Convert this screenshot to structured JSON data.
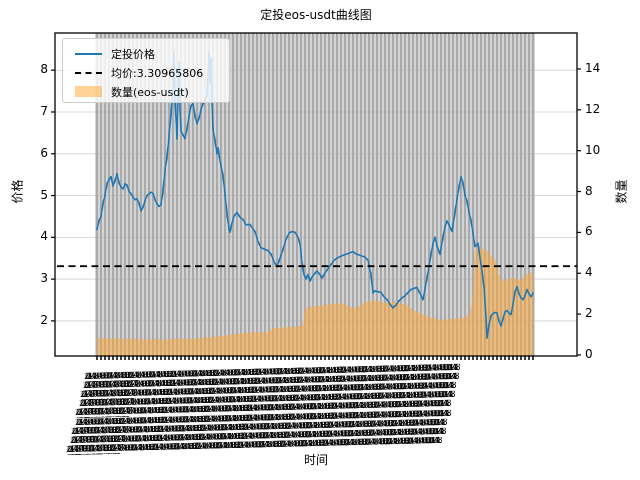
{
  "chart_data": {
    "type": "line",
    "title": "定投eos-usdt曲线图",
    "xlabel": "时间",
    "ylabel_left": "价格",
    "ylabel_right": "数量",
    "x_points": 110,
    "x_tick_labels_legible": false,
    "x_tick_illegible_pattern": "2021-04-18 04:00:00",
    "x_tick_overlap_rows": 9,
    "left_axis": {
      "ticks": [
        2,
        3,
        4,
        5,
        6,
        7,
        8
      ],
      "lim": [
        1.16,
        8.89
      ]
    },
    "right_axis": {
      "ticks": [
        0,
        2,
        4,
        6,
        8,
        10,
        12,
        14
      ],
      "lim": [
        -0.05,
        15.76
      ]
    },
    "grid": {
      "vertical_bars_per_x": true,
      "horizontal_gridlines": true
    },
    "colors": {
      "price_line": "#1f77b4",
      "avg_line": "#000000",
      "qty_fill": "rgba(255,166,47,0.5)",
      "bar_gray": "#a9a9a9",
      "gridline": "#d9d9d9",
      "legend_border": "#cccccc"
    },
    "legend": [
      {
        "label": "定投价格",
        "type": "line"
      },
      {
        "label": "均价:3.30965806",
        "type": "dashed"
      },
      {
        "label": "数量(eos-usdt)",
        "type": "patch"
      }
    ],
    "average_price": 3.30965806,
    "series": [
      {
        "name": "定投价格",
        "axis": "left",
        "kind": "line",
        "points": [
          [
            0,
            4.19
          ],
          [
            0.5,
            4.4
          ],
          [
            1,
            4.5
          ],
          [
            1.5,
            4.82
          ],
          [
            2,
            5.0
          ],
          [
            2.5,
            5.28
          ],
          [
            3,
            5.38
          ],
          [
            3.5,
            5.45
          ],
          [
            4,
            5.23
          ],
          [
            4.5,
            5.35
          ],
          [
            5,
            5.52
          ],
          [
            5.5,
            5.3
          ],
          [
            6,
            5.2
          ],
          [
            6.5,
            5.16
          ],
          [
            7,
            5.28
          ],
          [
            7.5,
            5.25
          ],
          [
            8,
            5.1
          ],
          [
            8.5,
            5.05
          ],
          [
            9,
            4.96
          ],
          [
            9.5,
            4.9
          ],
          [
            10,
            4.92
          ],
          [
            10.5,
            4.82
          ],
          [
            11,
            4.63
          ],
          [
            11.5,
            4.72
          ],
          [
            12,
            4.88
          ],
          [
            12.5,
            5.0
          ],
          [
            13,
            5.04
          ],
          [
            13.5,
            5.08
          ],
          [
            14,
            5.05
          ],
          [
            14.5,
            4.9
          ],
          [
            15,
            4.8
          ],
          [
            15.5,
            4.74
          ],
          [
            16,
            4.78
          ],
          [
            16.5,
            5.1
          ],
          [
            17,
            5.6
          ],
          [
            17.5,
            5.93
          ],
          [
            18,
            6.4
          ],
          [
            18.5,
            6.96
          ],
          [
            19,
            7.6
          ],
          [
            19.25,
            8.45
          ],
          [
            19.5,
            7.3
          ],
          [
            20,
            6.35
          ],
          [
            20.5,
            8.2
          ],
          [
            20.75,
            7.0
          ],
          [
            21,
            6.55
          ],
          [
            21.5,
            6.45
          ],
          [
            22,
            6.36
          ],
          [
            22.5,
            6.6
          ],
          [
            23,
            6.9
          ],
          [
            23.5,
            7.15
          ],
          [
            24,
            7.21
          ],
          [
            24.5,
            6.9
          ],
          [
            25,
            6.72
          ],
          [
            25.5,
            6.85
          ],
          [
            26,
            7.05
          ],
          [
            26.5,
            7.2
          ],
          [
            27,
            7.28
          ],
          [
            27.5,
            7.4
          ],
          [
            28,
            8.45
          ],
          [
            28.25,
            7.7
          ],
          [
            28.5,
            8.3
          ],
          [
            28.75,
            7.2
          ],
          [
            29,
            6.6
          ],
          [
            29.5,
            6.31
          ],
          [
            30,
            6.0
          ],
          [
            30.25,
            6.15
          ],
          [
            30.75,
            5.83
          ],
          [
            31.25,
            5.6
          ],
          [
            31.5,
            5.47
          ],
          [
            32,
            5.04
          ],
          [
            32.5,
            4.55
          ],
          [
            33,
            4.2
          ],
          [
            33.25,
            4.12
          ],
          [
            33.75,
            4.35
          ],
          [
            34.25,
            4.5
          ],
          [
            35,
            4.6
          ],
          [
            35.75,
            4.48
          ],
          [
            36.5,
            4.43
          ],
          [
            37.25,
            4.3
          ],
          [
            38.25,
            4.31
          ],
          [
            39,
            4.2
          ],
          [
            39.5,
            4.14
          ],
          [
            40.25,
            3.9
          ],
          [
            41,
            3.75
          ],
          [
            42,
            3.71
          ],
          [
            42.75,
            3.68
          ],
          [
            43.5,
            3.6
          ],
          [
            44.25,
            3.42
          ],
          [
            45,
            3.3
          ],
          [
            45.75,
            3.5
          ],
          [
            46.5,
            3.71
          ],
          [
            47.25,
            3.95
          ],
          [
            48,
            4.1
          ],
          [
            48.75,
            4.14
          ],
          [
            49.5,
            4.12
          ],
          [
            50.25,
            4.0
          ],
          [
            50.75,
            3.83
          ],
          [
            51.25,
            3.4
          ],
          [
            51.75,
            3.1
          ],
          [
            52.25,
            3.0
          ],
          [
            52.75,
            3.11
          ],
          [
            53.25,
            2.95
          ],
          [
            53.75,
            3.05
          ],
          [
            54.25,
            3.11
          ],
          [
            55,
            3.2
          ],
          [
            55.75,
            3.1
          ],
          [
            56.25,
            3.02
          ],
          [
            57,
            3.15
          ],
          [
            57.75,
            3.25
          ],
          [
            58.5,
            3.35
          ],
          [
            59.25,
            3.45
          ],
          [
            60,
            3.5
          ],
          [
            60.75,
            3.54
          ],
          [
            61.75,
            3.58
          ],
          [
            62.5,
            3.6
          ],
          [
            63.25,
            3.63
          ],
          [
            64,
            3.66
          ],
          [
            64.75,
            3.6
          ],
          [
            65.5,
            3.58
          ],
          [
            66.25,
            3.55
          ],
          [
            67,
            3.53
          ],
          [
            67.75,
            3.45
          ],
          [
            68.5,
            3.1
          ],
          [
            69,
            2.67
          ],
          [
            69.5,
            2.72
          ],
          [
            70.25,
            2.7
          ],
          [
            71,
            2.68
          ],
          [
            71.75,
            2.58
          ],
          [
            72.5,
            2.51
          ],
          [
            73.25,
            2.4
          ],
          [
            74,
            2.31
          ],
          [
            74.75,
            2.38
          ],
          [
            75.5,
            2.48
          ],
          [
            76.25,
            2.55
          ],
          [
            77,
            2.6
          ],
          [
            77.75,
            2.68
          ],
          [
            78.5,
            2.75
          ],
          [
            79.25,
            2.78
          ],
          [
            80,
            2.8
          ],
          [
            80.75,
            2.65
          ],
          [
            81.5,
            2.51
          ],
          [
            82.25,
            2.9
          ],
          [
            83,
            3.3
          ],
          [
            83.5,
            3.6
          ],
          [
            84,
            3.85
          ],
          [
            84.5,
            4.0
          ],
          [
            85,
            3.8
          ],
          [
            85.75,
            3.59
          ],
          [
            86.5,
            4.0
          ],
          [
            87,
            4.25
          ],
          [
            87.5,
            4.39
          ],
          [
            88,
            4.3
          ],
          [
            88.75,
            4.14
          ],
          [
            89.5,
            4.6
          ],
          [
            90,
            4.92
          ],
          [
            90.5,
            5.2
          ],
          [
            91,
            5.45
          ],
          [
            91.5,
            5.3
          ],
          [
            92,
            5.0
          ],
          [
            92.5,
            4.87
          ],
          [
            93,
            4.6
          ],
          [
            93.5,
            4.4
          ],
          [
            94,
            4.1
          ],
          [
            94.5,
            3.78
          ],
          [
            95,
            3.82
          ],
          [
            95.25,
            3.86
          ],
          [
            95.75,
            3.5
          ],
          [
            96.25,
            3.2
          ],
          [
            96.75,
            2.8
          ],
          [
            97.25,
            2.1
          ],
          [
            97.5,
            1.59
          ],
          [
            98,
            1.9
          ],
          [
            98.5,
            2.12
          ],
          [
            99,
            2.18
          ],
          [
            99.5,
            2.2
          ],
          [
            100,
            2.19
          ],
          [
            100.5,
            2.0
          ],
          [
            101,
            1.88
          ],
          [
            101.5,
            2.05
          ],
          [
            102,
            2.22
          ],
          [
            102.5,
            2.25
          ],
          [
            103,
            2.18
          ],
          [
            103.5,
            2.15
          ],
          [
            104,
            2.4
          ],
          [
            104.5,
            2.7
          ],
          [
            105,
            2.82
          ],
          [
            105.5,
            2.65
          ],
          [
            106,
            2.55
          ],
          [
            106.5,
            2.51
          ],
          [
            107,
            2.6
          ],
          [
            107.5,
            2.75
          ],
          [
            108,
            2.65
          ],
          [
            108.5,
            2.58
          ],
          [
            109,
            2.67
          ]
        ]
      },
      {
        "name": "数量(eos-usdt)",
        "axis": "right",
        "kind": "area",
        "points": [
          [
            0,
            0.85
          ],
          [
            2,
            0.8
          ],
          [
            4.5,
            0.82
          ],
          [
            7,
            0.78
          ],
          [
            9.5,
            0.8
          ],
          [
            12,
            0.75
          ],
          [
            14.5,
            0.78
          ],
          [
            17,
            0.75
          ],
          [
            19.5,
            0.8
          ],
          [
            22,
            0.78
          ],
          [
            24.5,
            0.8
          ],
          [
            27,
            0.85
          ],
          [
            29.5,
            0.9
          ],
          [
            32,
            0.95
          ],
          [
            33.25,
            1.0
          ],
          [
            35.75,
            1.05
          ],
          [
            38.25,
            1.1
          ],
          [
            40.75,
            1.12
          ],
          [
            42.5,
            1.1
          ],
          [
            44,
            1.3
          ],
          [
            45.75,
            1.32
          ],
          [
            48.25,
            1.37
          ],
          [
            50,
            1.4
          ],
          [
            51.5,
            1.45
          ],
          [
            52,
            2.3
          ],
          [
            53.25,
            2.35
          ],
          [
            55,
            2.4
          ],
          [
            56.5,
            2.44
          ],
          [
            58.25,
            2.5
          ],
          [
            59.5,
            2.52
          ],
          [
            60.75,
            2.54
          ],
          [
            62,
            2.45
          ],
          [
            63.25,
            2.35
          ],
          [
            65,
            2.29
          ],
          [
            66.25,
            2.5
          ],
          [
            67.5,
            2.6
          ],
          [
            69,
            2.68
          ],
          [
            70.75,
            2.6
          ],
          [
            72,
            2.55
          ],
          [
            73.25,
            2.59
          ],
          [
            74.5,
            2.62
          ],
          [
            75.75,
            2.55
          ],
          [
            77.5,
            2.45
          ],
          [
            79,
            2.2
          ],
          [
            80.75,
            2.05
          ],
          [
            82.5,
            1.9
          ],
          [
            84,
            1.8
          ],
          [
            85.75,
            1.71
          ],
          [
            87.5,
            1.75
          ],
          [
            89,
            1.78
          ],
          [
            90.75,
            1.8
          ],
          [
            92,
            1.85
          ],
          [
            93.25,
            2.0
          ],
          [
            94,
            3.0
          ],
          [
            94.5,
            5.1
          ],
          [
            95.25,
            5.2
          ],
          [
            96,
            5.25
          ],
          [
            96.75,
            5.15
          ],
          [
            97.5,
            5.1
          ],
          [
            98.25,
            4.9
          ],
          [
            99,
            4.7
          ],
          [
            99.75,
            4.6
          ],
          [
            100.5,
            3.9
          ],
          [
            101,
            3.7
          ],
          [
            102,
            3.6
          ],
          [
            103.25,
            3.76
          ],
          [
            104,
            3.8
          ],
          [
            104.75,
            3.7
          ],
          [
            105.75,
            3.66
          ],
          [
            106.75,
            3.8
          ],
          [
            107.75,
            4.0
          ],
          [
            108.5,
            4.05
          ],
          [
            109,
            4.0
          ]
        ]
      }
    ]
  }
}
